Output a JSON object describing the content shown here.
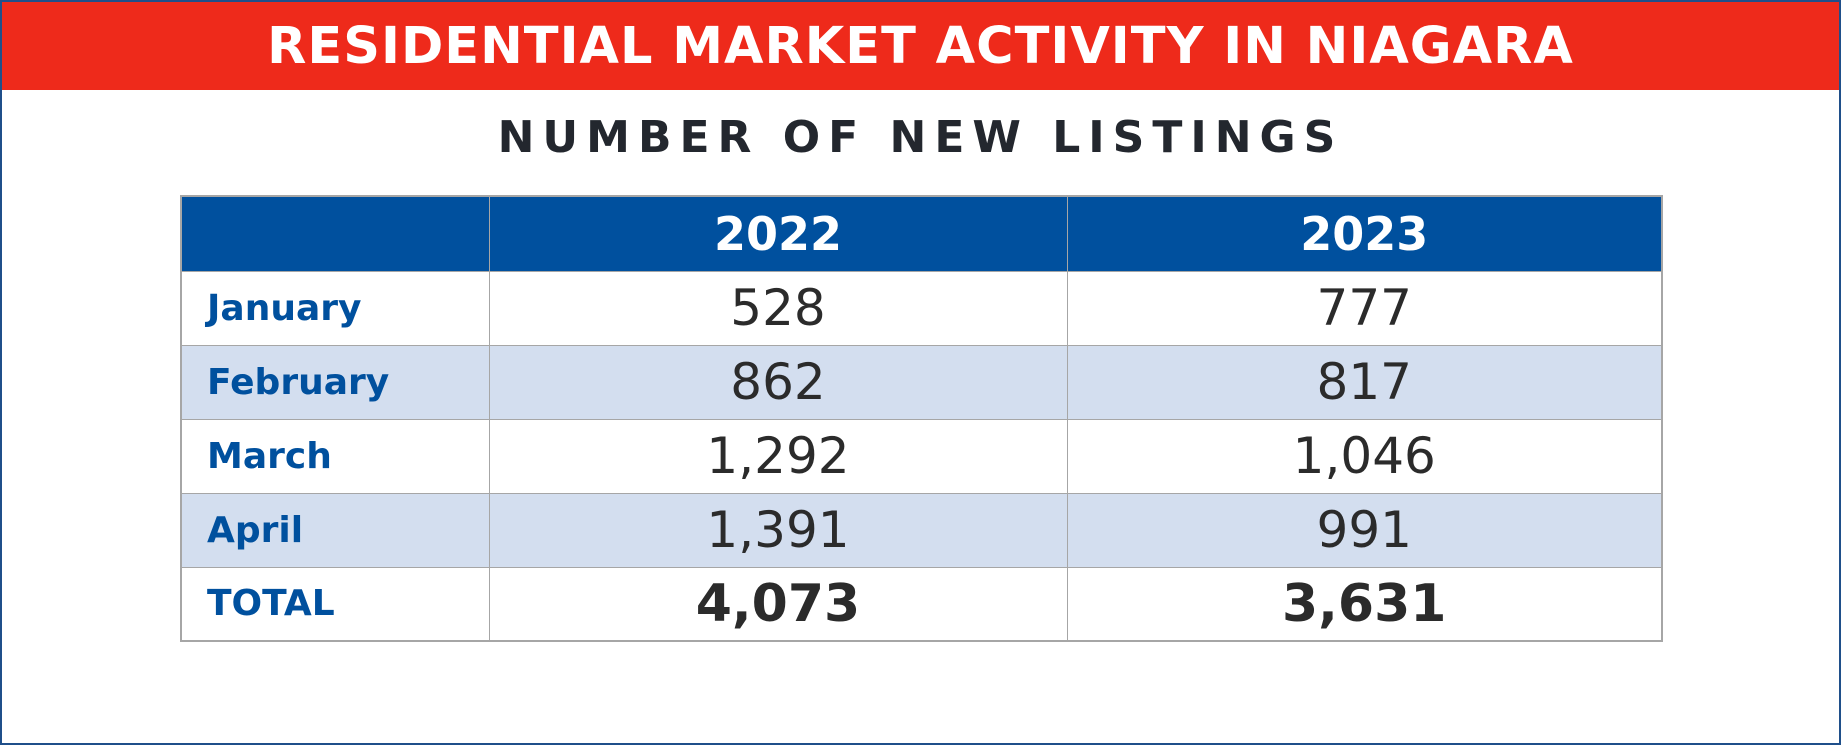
{
  "banner": {
    "title": "RESIDENTIAL MARKET ACTIVITY IN NIAGARA"
  },
  "subtitle": "NUMBER OF NEW LISTINGS",
  "colors": {
    "banner_bg": "#ee2a1b",
    "header_bg": "#00509e",
    "month_text": "#00509e",
    "shaded_row": "#d3deef",
    "frame_border": "#1f4f8a"
  },
  "chart_data": {
    "type": "table",
    "title": "NUMBER OF NEW LISTINGS",
    "columns": [
      "",
      "2022",
      "2023"
    ],
    "rows": [
      {
        "label": "January",
        "values": [
          "528",
          "777"
        ]
      },
      {
        "label": "February",
        "values": [
          "862",
          "817"
        ]
      },
      {
        "label": "March",
        "values": [
          "1,292",
          "1,046"
        ]
      },
      {
        "label": "April",
        "values": [
          "1,391",
          "991"
        ]
      },
      {
        "label": "TOTAL",
        "values": [
          "4,073",
          "3,631"
        ]
      }
    ]
  }
}
